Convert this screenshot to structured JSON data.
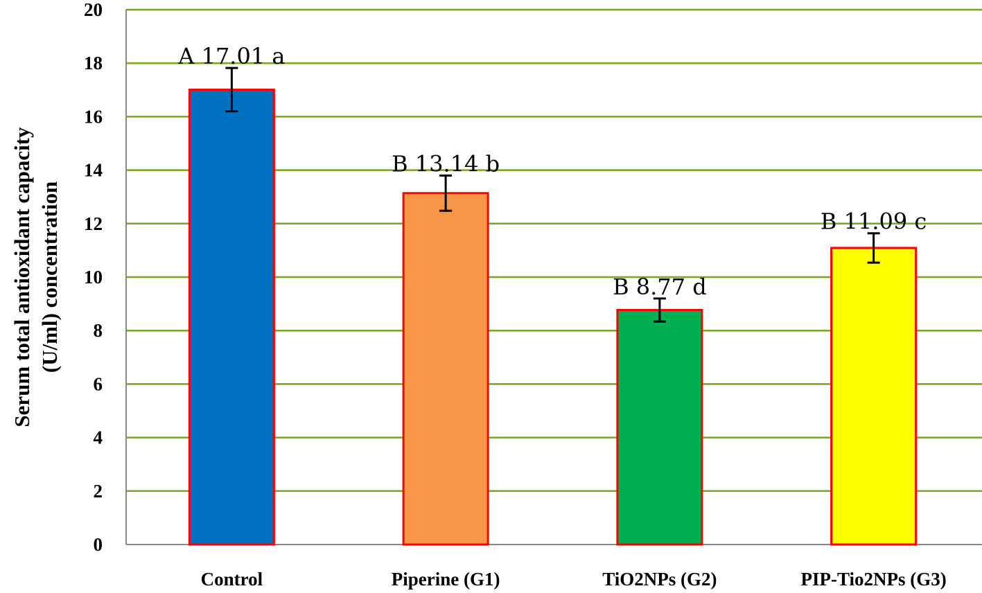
{
  "chart_data": {
    "type": "bar",
    "title": "",
    "xlabel": "",
    "ylabel_lines": [
      "Serum total antioxidant capacity",
      "(U/ml) concentration"
    ],
    "ylim": [
      0,
      20
    ],
    "yticks": [
      0,
      2,
      4,
      6,
      8,
      10,
      12,
      14,
      16,
      18,
      20
    ],
    "grid": true,
    "categories": [
      "Control",
      "Piperine (G1)",
      "TiO2NPs (G2)",
      "PIP-Tio2NPs (G3)"
    ],
    "values": [
      17.01,
      13.14,
      8.77,
      11.09
    ],
    "errors": [
      0.81,
      0.66,
      0.43,
      0.55
    ],
    "data_labels": [
      "A 17.01 a",
      "B 13.14 b",
      "B 8.77 d",
      "B 11.09 c"
    ],
    "bar_colors": [
      "#0070c0",
      "#f79646",
      "#00b050",
      "#ffff00"
    ],
    "bar_edge_color": "#ff0000",
    "grid_color": "#76a520"
  }
}
